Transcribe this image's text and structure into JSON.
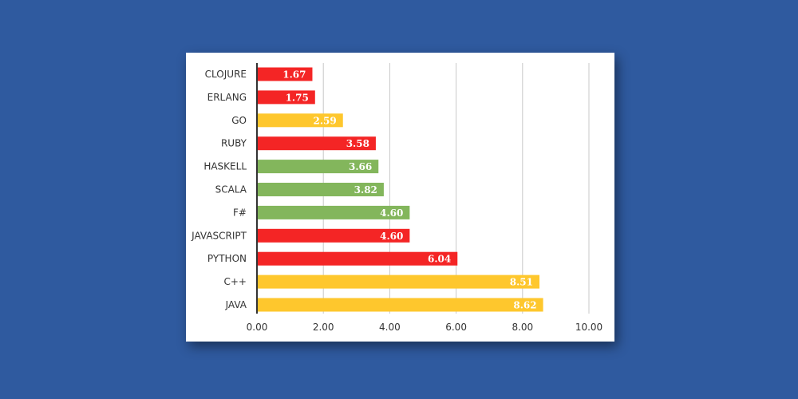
{
  "chart_data": {
    "type": "bar",
    "orientation": "horizontal",
    "categories": [
      "CLOJURE",
      "ERLANG",
      "GO",
      "RUBY",
      "HASKELL",
      "SCALA",
      "F#",
      "JAVASCRIPT",
      "PYTHON",
      "C++",
      "JAVA"
    ],
    "values": [
      1.67,
      1.75,
      2.59,
      3.58,
      3.66,
      3.82,
      4.6,
      4.6,
      6.04,
      8.51,
      8.62
    ],
    "value_labels": [
      "1.67",
      "1.75",
      "2.59",
      "3.58",
      "3.66",
      "3.82",
      "4.60",
      "4.60",
      "6.04",
      "8.51",
      "8.62"
    ],
    "bar_colors": [
      "#f42525",
      "#f42525",
      "#fec72d",
      "#f42525",
      "#83b65c",
      "#83b65c",
      "#83b65c",
      "#f42525",
      "#f42525",
      "#fec72d",
      "#fec72d"
    ],
    "xlim": [
      0,
      10
    ],
    "xticks": [
      0,
      2,
      4,
      6,
      8,
      10
    ],
    "xtick_labels": [
      "0.00",
      "2.00",
      "4.00",
      "6.00",
      "8.00",
      "10.00"
    ],
    "grid": "vertical",
    "title": "",
    "xlabel": "",
    "ylabel": ""
  },
  "colors": {
    "background": "#2f5a9f",
    "card": "#ffffff",
    "red": "#f42525",
    "yellow": "#fec72d",
    "green": "#83b65c"
  }
}
